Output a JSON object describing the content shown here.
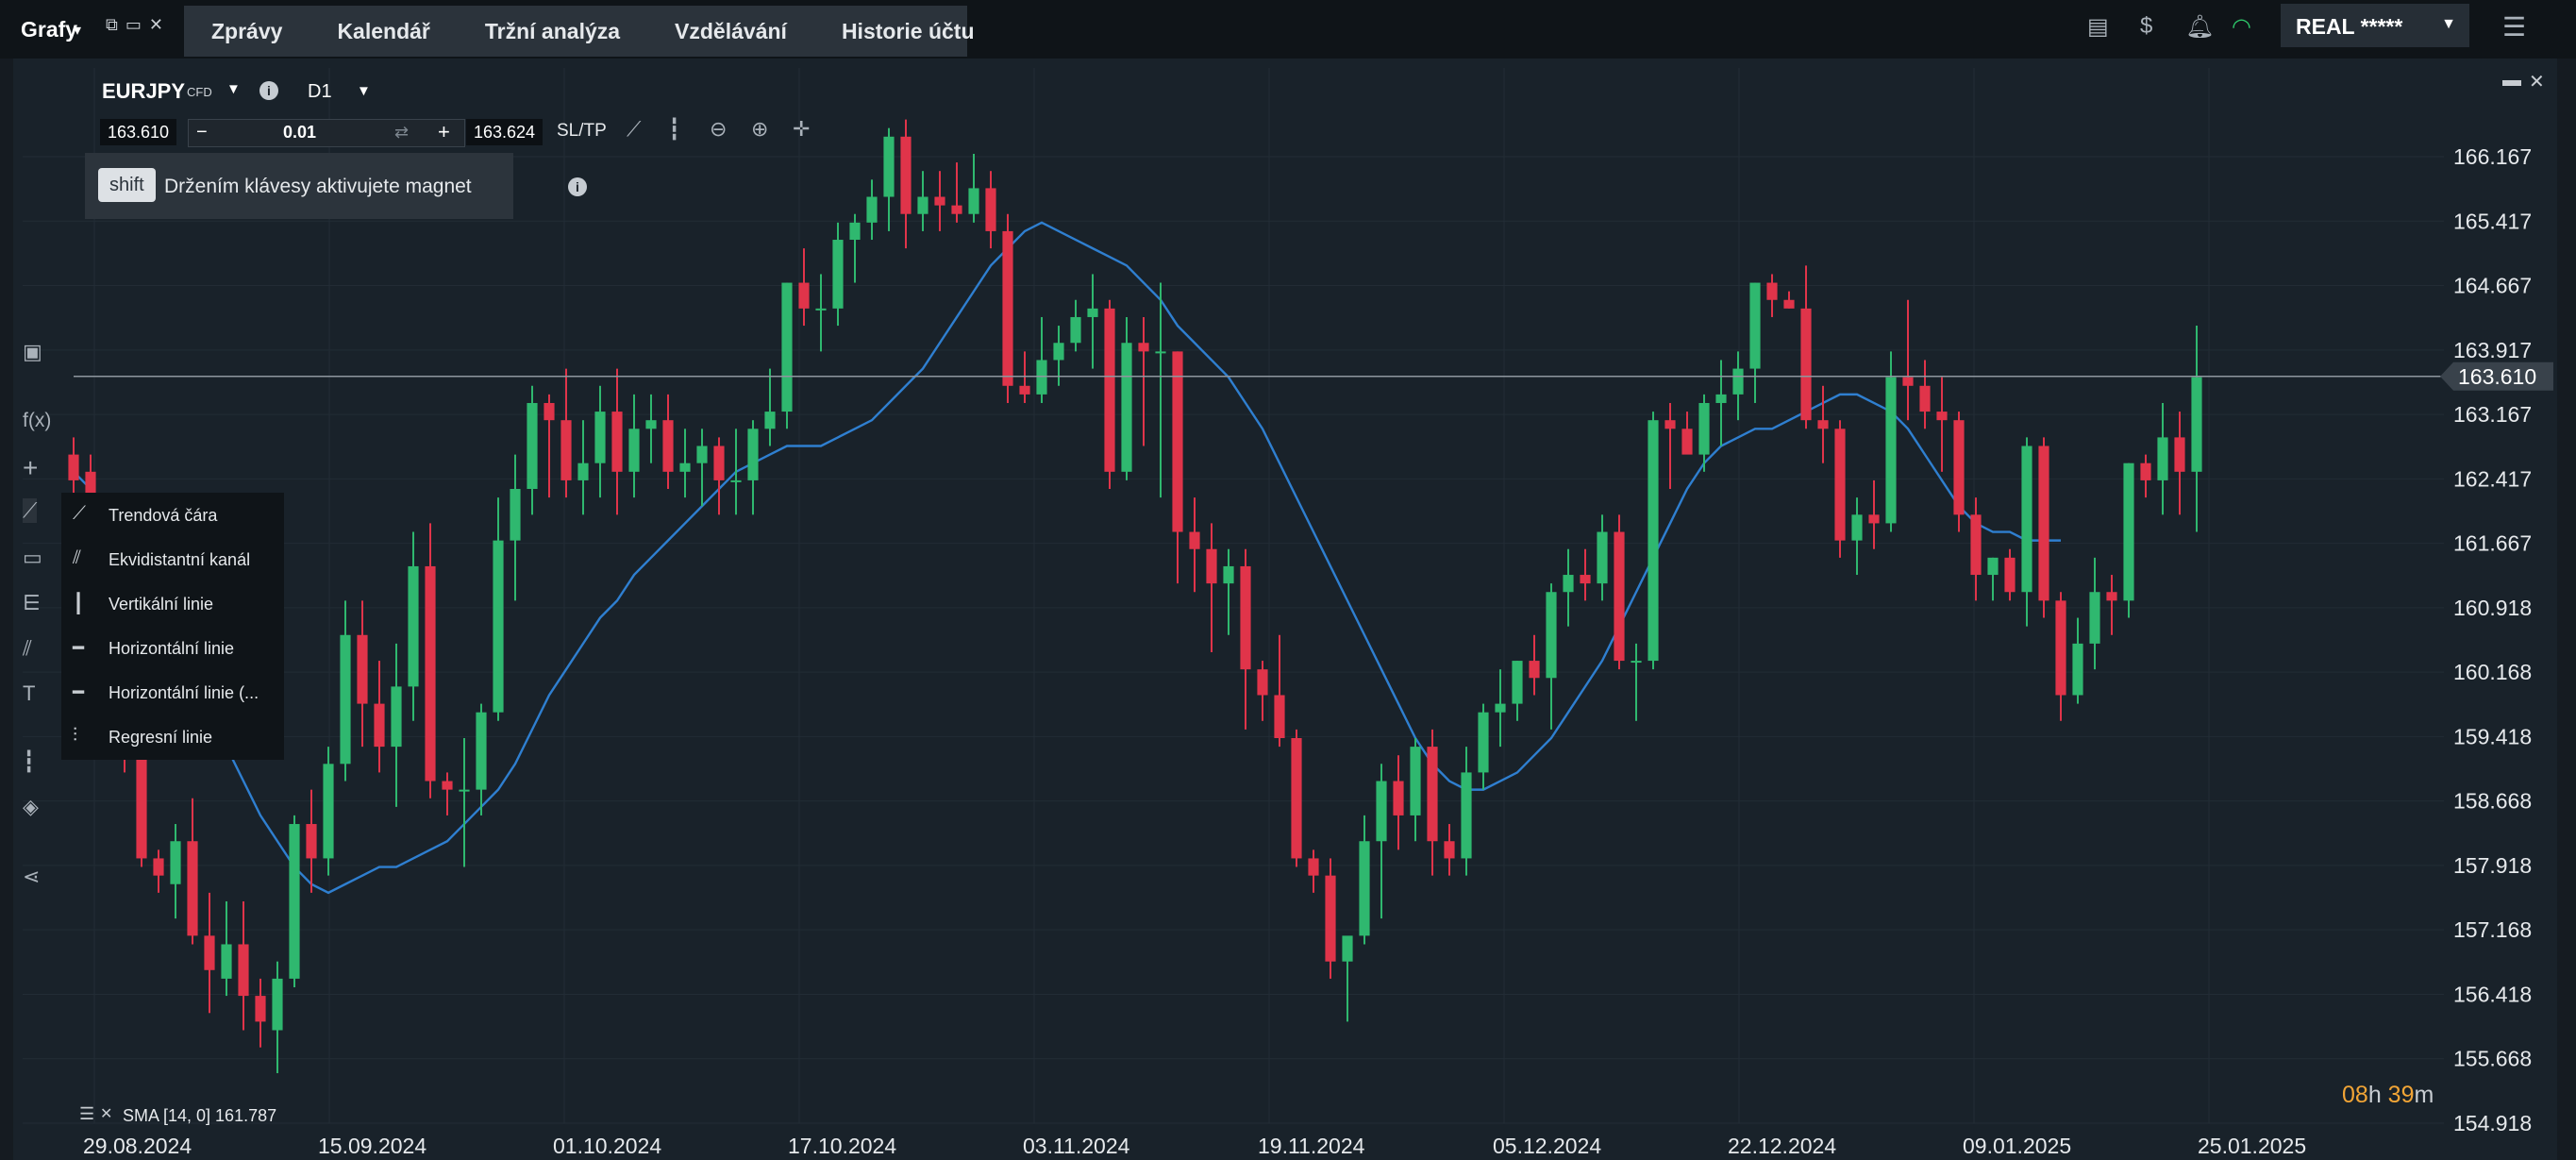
{
  "topbar": {
    "brand": "Grafy",
    "nav": [
      "Zprávy",
      "Kalendář",
      "Tržní analýza",
      "Vzdělávání",
      "Historie účtu"
    ],
    "account_label": "REAL *****",
    "icons": [
      "layout-icon",
      "dollar-signal-icon",
      "bell-icon",
      "wifi-icon",
      "menu-icon"
    ]
  },
  "chart_header": {
    "symbol": "EURJPY",
    "symbol_type": "CFD",
    "timeframe": "D1",
    "bid": "163.610",
    "ask": "163.624",
    "quantity": "0.01",
    "sltp": "SL/TP"
  },
  "hint": {
    "key": "shift",
    "text": "Držením klávesy aktivujete magnet"
  },
  "draw_menu": {
    "items": [
      "Trendová čára",
      "Ekvidistantní kanál",
      "Vertikální linie",
      "Horizontální linie",
      "Horizontální linie (...",
      "Regresní linie"
    ]
  },
  "indicator": {
    "label": "SMA [14, 0] 161.787"
  },
  "countdown": {
    "hours": "08",
    "h_unit": "h",
    "minutes": "39",
    "m_unit": "m"
  },
  "colors": {
    "up": "#2fb86f",
    "down": "#e0344a",
    "sma": "#2f7fd0",
    "current_price_line": "#8f979f"
  },
  "chart_data": {
    "type": "candlestick",
    "symbol": "EURJPY",
    "timeframe": "D1",
    "x_labels": [
      "29.08.2024",
      "15.09.2024",
      "01.10.2024",
      "17.10.2024",
      "03.11.2024",
      "19.11.2024",
      "05.12.2024",
      "22.12.2024",
      "09.01.2025",
      "25.01.2025"
    ],
    "y_ticks": [
      "166.167",
      "165.417",
      "164.667",
      "163.917",
      "163.167",
      "162.417",
      "161.667",
      "160.918",
      "160.168",
      "159.418",
      "158.668",
      "157.918",
      "157.168",
      "156.418",
      "155.668",
      "154.918"
    ],
    "ylim": [
      154.918,
      166.167
    ],
    "current_price": "163.610",
    "candles_ohlc": [
      [
        162.7,
        162.9,
        162.1,
        162.4
      ],
      [
        162.5,
        162.7,
        161.6,
        161.9
      ],
      [
        161.9,
        162.1,
        160.2,
        160.4
      ],
      [
        160.2,
        160.4,
        159.0,
        159.3
      ],
      [
        159.4,
        159.5,
        157.9,
        158.0
      ],
      [
        158.0,
        158.1,
        157.6,
        157.8
      ],
      [
        157.7,
        158.4,
        157.3,
        158.2
      ],
      [
        158.2,
        158.7,
        157.0,
        157.1
      ],
      [
        157.1,
        157.6,
        156.2,
        156.7
      ],
      [
        156.6,
        157.5,
        156.4,
        157.0
      ],
      [
        157.0,
        157.5,
        156.0,
        156.4
      ],
      [
        156.4,
        156.6,
        155.8,
        156.1
      ],
      [
        156.0,
        156.8,
        155.5,
        156.6
      ],
      [
        156.6,
        158.5,
        156.5,
        158.4
      ],
      [
        158.4,
        158.8,
        157.6,
        158.0
      ],
      [
        158.0,
        159.3,
        157.8,
        159.1
      ],
      [
        159.1,
        161.0,
        158.9,
        160.6
      ],
      [
        160.6,
        161.0,
        159.3,
        159.8
      ],
      [
        159.8,
        160.3,
        159.0,
        159.3
      ],
      [
        159.3,
        160.5,
        158.6,
        160.0
      ],
      [
        160.0,
        161.8,
        159.6,
        161.4
      ],
      [
        161.4,
        161.9,
        158.7,
        158.9
      ],
      [
        158.9,
        159.0,
        158.5,
        158.8
      ],
      [
        158.8,
        159.4,
        157.9,
        158.8
      ],
      [
        158.8,
        159.8,
        158.5,
        159.7
      ],
      [
        159.7,
        162.2,
        159.6,
        161.7
      ],
      [
        161.7,
        162.7,
        161.0,
        162.3
      ],
      [
        162.3,
        163.5,
        162.0,
        163.3
      ],
      [
        163.3,
        163.4,
        162.2,
        163.1
      ],
      [
        163.1,
        163.7,
        162.2,
        162.4
      ],
      [
        162.4,
        163.1,
        162.0,
        162.6
      ],
      [
        162.6,
        163.5,
        162.2,
        163.2
      ],
      [
        163.2,
        163.7,
        162.0,
        162.5
      ],
      [
        162.5,
        163.4,
        162.2,
        163.0
      ],
      [
        163.0,
        163.4,
        162.6,
        163.1
      ],
      [
        163.1,
        163.4,
        162.3,
        162.5
      ],
      [
        162.5,
        163.0,
        162.2,
        162.6
      ],
      [
        162.6,
        163.0,
        162.1,
        162.8
      ],
      [
        162.8,
        162.9,
        162.0,
        162.4
      ],
      [
        162.4,
        163.0,
        162.0,
        162.4
      ],
      [
        162.4,
        163.1,
        162.0,
        163.0
      ],
      [
        163.0,
        163.7,
        162.8,
        163.2
      ],
      [
        163.2,
        164.7,
        163.0,
        164.7
      ],
      [
        164.7,
        165.1,
        164.2,
        164.4
      ],
      [
        164.4,
        164.8,
        163.9,
        164.4
      ],
      [
        164.4,
        165.4,
        164.2,
        165.2
      ],
      [
        165.2,
        165.5,
        164.7,
        165.4
      ],
      [
        165.4,
        165.9,
        165.2,
        165.7
      ],
      [
        165.7,
        166.5,
        165.3,
        166.4
      ],
      [
        166.4,
        166.6,
        165.1,
        165.5
      ],
      [
        165.5,
        166.0,
        165.3,
        165.7
      ],
      [
        165.7,
        166.0,
        165.3,
        165.6
      ],
      [
        165.6,
        166.1,
        165.4,
        165.5
      ],
      [
        165.5,
        166.2,
        165.4,
        165.8
      ],
      [
        165.8,
        166.0,
        165.1,
        165.3
      ],
      [
        165.3,
        165.5,
        163.3,
        163.5
      ],
      [
        163.5,
        163.9,
        163.3,
        163.4
      ],
      [
        163.4,
        164.3,
        163.3,
        163.8
      ],
      [
        163.8,
        164.2,
        163.5,
        164.0
      ],
      [
        164.0,
        164.5,
        163.9,
        164.3
      ],
      [
        164.3,
        164.8,
        163.7,
        164.4
      ],
      [
        164.4,
        164.5,
        162.3,
        162.5
      ],
      [
        162.5,
        164.3,
        162.4,
        164.0
      ],
      [
        164.0,
        164.3,
        162.8,
        163.9
      ],
      [
        163.9,
        164.7,
        162.2,
        163.9
      ],
      [
        163.9,
        163.9,
        161.2,
        161.8
      ],
      [
        161.8,
        162.2,
        161.1,
        161.6
      ],
      [
        161.6,
        161.9,
        160.4,
        161.2
      ],
      [
        161.2,
        161.6,
        160.6,
        161.4
      ],
      [
        161.4,
        161.6,
        159.5,
        160.2
      ],
      [
        160.2,
        160.3,
        159.6,
        159.9
      ],
      [
        159.9,
        160.6,
        159.3,
        159.4
      ],
      [
        159.4,
        159.5,
        157.9,
        158.0
      ],
      [
        158.0,
        158.1,
        157.6,
        157.8
      ],
      [
        157.8,
        158.0,
        156.6,
        156.8
      ],
      [
        156.8,
        157.0,
        156.1,
        157.1
      ],
      [
        157.1,
        158.5,
        157.0,
        158.2
      ],
      [
        158.2,
        159.1,
        157.3,
        158.9
      ],
      [
        158.9,
        159.2,
        158.1,
        158.5
      ],
      [
        158.5,
        159.4,
        158.2,
        159.3
      ],
      [
        159.3,
        159.5,
        157.8,
        158.2
      ],
      [
        158.2,
        158.4,
        157.8,
        158.0
      ],
      [
        158.0,
        159.3,
        157.8,
        159.0
      ],
      [
        159.0,
        159.8,
        158.8,
        159.7
      ],
      [
        159.7,
        160.2,
        159.3,
        159.8
      ],
      [
        159.8,
        160.3,
        159.6,
        160.3
      ],
      [
        160.3,
        160.6,
        159.9,
        160.1
      ],
      [
        160.1,
        161.2,
        159.5,
        161.1
      ],
      [
        161.1,
        161.6,
        160.7,
        161.3
      ],
      [
        161.3,
        161.6,
        161.0,
        161.2
      ],
      [
        161.2,
        162.0,
        161.0,
        161.8
      ],
      [
        161.8,
        162.0,
        160.2,
        160.3
      ],
      [
        160.3,
        160.5,
        159.6,
        160.3
      ],
      [
        160.3,
        163.2,
        160.2,
        163.1
      ],
      [
        163.1,
        163.3,
        162.3,
        163.0
      ],
      [
        163.0,
        163.2,
        162.8,
        162.7
      ],
      [
        162.7,
        163.4,
        162.5,
        163.3
      ],
      [
        163.3,
        163.8,
        162.8,
        163.4
      ],
      [
        163.4,
        163.9,
        163.1,
        163.7
      ],
      [
        163.7,
        164.7,
        163.3,
        164.7
      ],
      [
        164.7,
        164.8,
        164.3,
        164.5
      ],
      [
        164.5,
        164.6,
        164.4,
        164.4
      ],
      [
        164.4,
        164.9,
        163.0,
        163.1
      ],
      [
        163.1,
        163.5,
        162.6,
        163.0
      ],
      [
        163.0,
        163.1,
        161.5,
        161.7
      ],
      [
        161.7,
        162.2,
        161.3,
        162.0
      ],
      [
        162.0,
        162.4,
        161.6,
        161.9
      ],
      [
        161.9,
        163.9,
        161.8,
        163.6
      ],
      [
        163.6,
        164.5,
        163.1,
        163.5
      ],
      [
        163.5,
        163.8,
        163.0,
        163.2
      ],
      [
        163.2,
        163.6,
        162.5,
        163.1
      ],
      [
        163.1,
        163.2,
        161.8,
        162.0
      ],
      [
        162.0,
        162.2,
        161.0,
        161.3
      ],
      [
        161.3,
        161.5,
        161.0,
        161.5
      ],
      [
        161.5,
        161.6,
        161.0,
        161.1
      ],
      [
        161.1,
        162.9,
        160.7,
        162.8
      ],
      [
        162.8,
        162.9,
        160.8,
        161.0
      ],
      [
        161.0,
        161.1,
        159.6,
        159.9
      ],
      [
        159.9,
        160.8,
        159.8,
        160.5
      ],
      [
        160.5,
        161.5,
        160.2,
        161.1
      ],
      [
        161.1,
        161.3,
        160.6,
        161.0
      ],
      [
        161.0,
        162.6,
        160.8,
        162.6
      ],
      [
        162.6,
        162.7,
        162.2,
        162.4
      ],
      [
        162.4,
        163.3,
        162.0,
        162.9
      ],
      [
        162.9,
        163.2,
        162.0,
        162.5
      ],
      [
        162.5,
        164.2,
        161.8,
        163.6
      ]
    ],
    "sma_values": [
      162.5,
      162.3,
      162.0,
      161.7,
      161.4,
      161.0,
      160.6,
      160.2,
      159.8,
      159.3,
      158.9,
      158.5,
      158.2,
      157.9,
      157.7,
      157.6,
      157.7,
      157.8,
      157.9,
      157.9,
      158.0,
      158.1,
      158.2,
      158.4,
      158.6,
      158.8,
      159.1,
      159.5,
      159.9,
      160.2,
      160.5,
      160.8,
      161.0,
      161.3,
      161.5,
      161.7,
      161.9,
      162.1,
      162.3,
      162.5,
      162.6,
      162.7,
      162.8,
      162.8,
      162.8,
      162.9,
      163.0,
      163.1,
      163.3,
      163.5,
      163.7,
      164.0,
      164.3,
      164.6,
      164.9,
      165.1,
      165.3,
      165.4,
      165.3,
      165.2,
      165.1,
      165.0,
      164.9,
      164.7,
      164.5,
      164.2,
      164.0,
      163.8,
      163.6,
      163.3,
      163.0,
      162.6,
      162.2,
      161.8,
      161.4,
      161.0,
      160.6,
      160.2,
      159.8,
      159.4,
      159.1,
      158.9,
      158.8,
      158.8,
      158.9,
      159.0,
      159.2,
      159.4,
      159.7,
      160.0,
      160.3,
      160.7,
      161.1,
      161.5,
      161.9,
      162.3,
      162.6,
      162.8,
      162.9,
      163.0,
      163.0,
      163.1,
      163.2,
      163.3,
      163.4,
      163.4,
      163.3,
      163.2,
      163.0,
      162.7,
      162.4,
      162.1,
      161.9,
      161.8,
      161.8,
      161.7,
      161.7,
      161.7
    ]
  }
}
